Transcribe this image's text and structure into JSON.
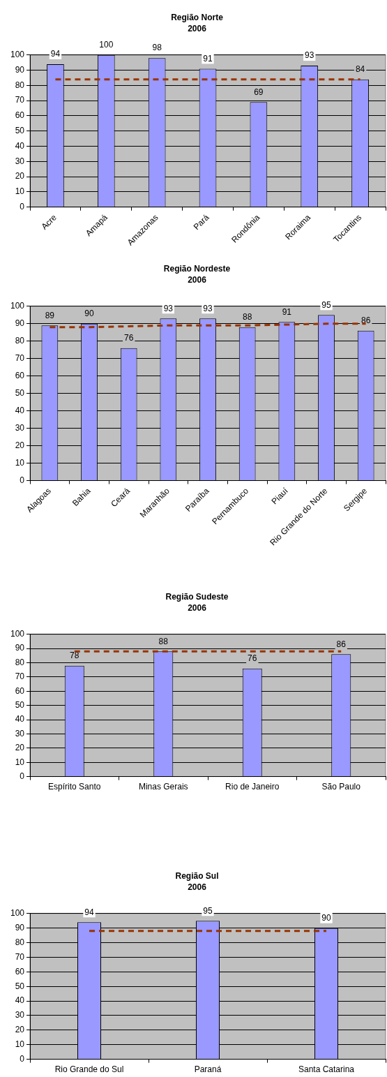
{
  "chart_data": [
    {
      "type": "bar",
      "title": "Região Norte",
      "subtitle": "2006",
      "categories": [
        "Acre",
        "Amapá",
        "Amazonas",
        "Pará",
        "Rondônia",
        "Roraima",
        "Tocantins"
      ],
      "series": [
        {
          "color": "#9999ff",
          "values": [
            94,
            100,
            98,
            91,
            69,
            93,
            84
          ],
          "value_labels": [
            "94",
            "100",
            "98",
            "91",
            "69",
            "93",
            "84"
          ]
        },
        {
          "type": "line",
          "color": "#993300",
          "line_style": "dashed",
          "marker": "none",
          "values": [
            84,
            84,
            84,
            84,
            84,
            84,
            84
          ]
        }
      ],
      "ylim": [
        0,
        100
      ],
      "yticks": [
        0,
        10,
        20,
        30,
        40,
        50,
        60,
        70,
        80,
        90,
        100
      ],
      "grid": "y",
      "legend": false
    },
    {
      "type": "bar",
      "title": "Região Nordeste",
      "subtitle": "2006",
      "categories": [
        "Alagoas",
        "Bahia",
        "Ceará",
        "Maranhão",
        "Paraíba",
        "Pernambuco",
        "Piauí",
        "Rio Grande do Norte",
        "Sergipe"
      ],
      "series": [
        {
          "color": "#9999ff",
          "values": [
            89,
            90,
            76,
            93,
            93,
            88,
            91,
            95,
            86
          ],
          "value_labels": [
            "89",
            "90",
            "76",
            "93",
            "93",
            "88",
            "91",
            "95",
            "86"
          ]
        },
        {
          "type": "line",
          "color": "#993300",
          "line_style": "dashed",
          "marker": "none",
          "values": [
            88,
            88,
            88.5,
            89,
            89,
            89,
            89.5,
            90,
            90
          ]
        }
      ],
      "ylim": [
        0,
        100
      ],
      "yticks": [
        0,
        10,
        20,
        30,
        40,
        50,
        60,
        70,
        80,
        90,
        100
      ],
      "grid": "y",
      "legend": false
    },
    {
      "type": "bar",
      "title": "Região Sudeste",
      "subtitle": "2006",
      "categories": [
        "Espírito Santo",
        "Minas Gerais",
        "Rio de Janeiro",
        "São Paulo"
      ],
      "series": [
        {
          "color": "#9999ff",
          "values": [
            78,
            88,
            76,
            86
          ],
          "value_labels": [
            "78",
            "88",
            "76",
            "86"
          ]
        },
        {
          "type": "line",
          "color": "#993300",
          "line_style": "dashed",
          "marker": "none",
          "values": [
            88,
            88,
            88,
            88
          ]
        }
      ],
      "ylim": [
        0,
        100
      ],
      "yticks": [
        0,
        10,
        20,
        30,
        40,
        50,
        60,
        70,
        80,
        90,
        100
      ],
      "grid": "y",
      "legend": false
    },
    {
      "type": "bar",
      "title": "Região Sul",
      "subtitle": "2006",
      "categories": [
        "Rio Grande do Sul",
        "Paraná",
        "Santa Catarina"
      ],
      "series": [
        {
          "color": "#9999ff",
          "values": [
            94,
            95,
            90
          ],
          "value_labels": [
            "94",
            "95",
            "90"
          ]
        },
        {
          "type": "line",
          "color": "#993300",
          "line_style": "dashed",
          "marker": "none",
          "values": [
            88,
            88,
            88
          ]
        }
      ],
      "ylim": [
        0,
        100
      ],
      "yticks": [
        0,
        10,
        20,
        30,
        40,
        50,
        60,
        70,
        80,
        90,
        100
      ],
      "grid": "y",
      "legend": false
    }
  ]
}
